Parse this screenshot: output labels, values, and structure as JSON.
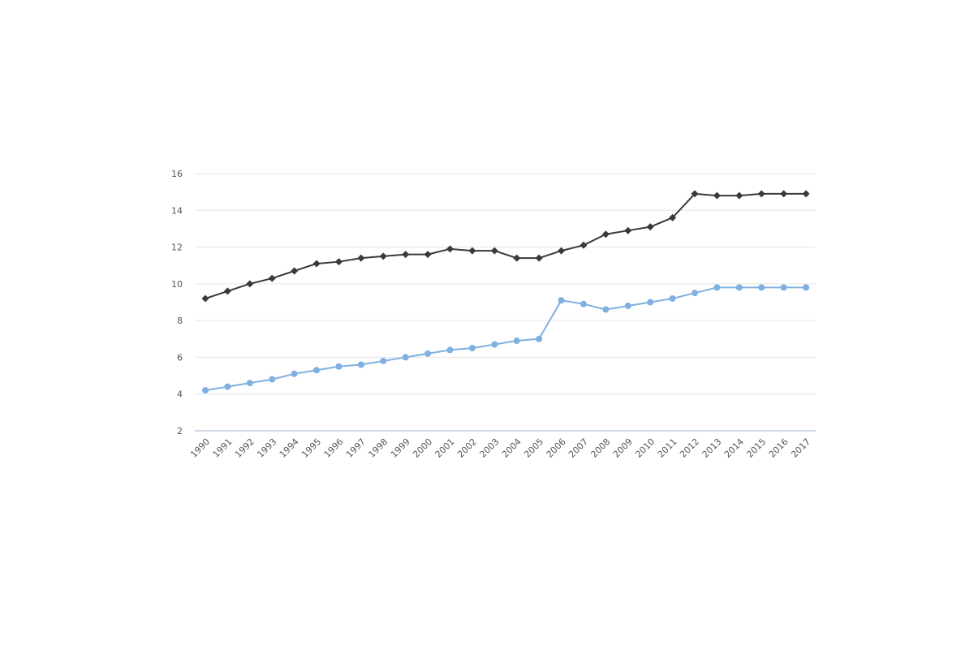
{
  "chart_data": {
    "type": "line",
    "title": "",
    "xlabel": "",
    "ylabel": "",
    "ylim": [
      2,
      16
    ],
    "y_ticks": [
      2,
      4,
      6,
      8,
      10,
      12,
      14,
      16
    ],
    "grid": true,
    "x": [
      "1990",
      "1991",
      "1992",
      "1993",
      "1994",
      "1995",
      "1996",
      "1997",
      "1998",
      "1999",
      "2000",
      "2001",
      "2002",
      "2003",
      "2004",
      "2005",
      "2006",
      "2007",
      "2008",
      "2009",
      "2010",
      "2011",
      "2012",
      "2013",
      "2014",
      "2015",
      "2016",
      "2017"
    ],
    "series": [
      {
        "color": "#3a3a3a",
        "marker": "diamond",
        "values": [
          9.2,
          9.6,
          10.0,
          10.3,
          10.7,
          11.1,
          11.2,
          11.4,
          11.5,
          11.6,
          11.6,
          11.9,
          11.8,
          11.8,
          11.4,
          11.4,
          11.8,
          12.1,
          12.7,
          12.9,
          13.1,
          13.6,
          14.9,
          14.8,
          14.8,
          14.9,
          14.9,
          14.9
        ]
      },
      {
        "color": "#7fb0e0",
        "marker": "circle",
        "values": [
          4.2,
          4.4,
          4.6,
          4.8,
          5.1,
          5.3,
          5.5,
          5.6,
          5.8,
          6.0,
          6.2,
          6.4,
          6.5,
          6.7,
          6.9,
          7.0,
          9.1,
          8.9,
          8.6,
          8.8,
          9.0,
          9.2,
          9.5,
          9.8,
          9.8,
          9.8,
          9.8,
          9.8
        ]
      }
    ]
  }
}
